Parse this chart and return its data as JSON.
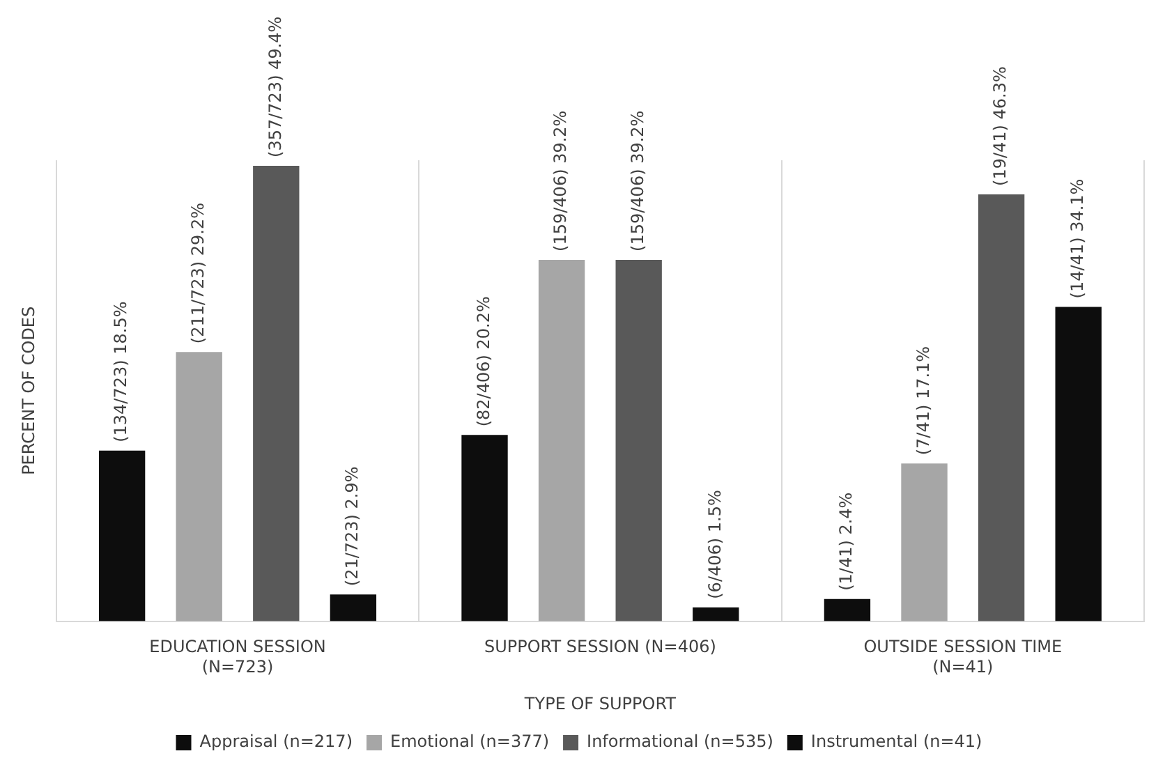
{
  "chart_data": {
    "type": "bar",
    "xlabel": "TYPE OF SUPPORT",
    "ylabel": "PERCENT OF CODES",
    "categories": [
      "EDUCATION SESSION (N=723)",
      "SUPPORT SESSION (N=406)",
      "OUTSIDE SESSION TIME (N=41)"
    ],
    "series": [
      {
        "name": "Appraisal (n=217)",
        "color": "#0d0d0d",
        "values": [
          18.5,
          20.2,
          2.4
        ],
        "value_labels": [
          "(134/723) 18.5%",
          "(82/406) 20.2%",
          "(1/41) 2.4%"
        ]
      },
      {
        "name": "Emotional (n=377)",
        "color": "#a6a6a6",
        "values": [
          29.2,
          39.2,
          17.1
        ],
        "value_labels": [
          "(211/723) 29.2%",
          "(159/406) 39.2%",
          "(7/41) 17.1%"
        ]
      },
      {
        "name": "Informational (n=535)",
        "color": "#595959",
        "values": [
          49.4,
          39.2,
          46.3
        ],
        "value_labels": [
          "(357/723) 49.4%",
          "(159/406) 39.2%",
          "(19/41) 46.3%"
        ]
      },
      {
        "name": "Instrumental (n=41)",
        "color": "#0d0d0d",
        "values": [
          2.9,
          1.5,
          34.1
        ],
        "value_labels": [
          "(21/723) 2.9%",
          "(6/406) 1.5%",
          "(14/41) 34.1%"
        ]
      }
    ],
    "grid": "x",
    "legend": "bottom"
  }
}
